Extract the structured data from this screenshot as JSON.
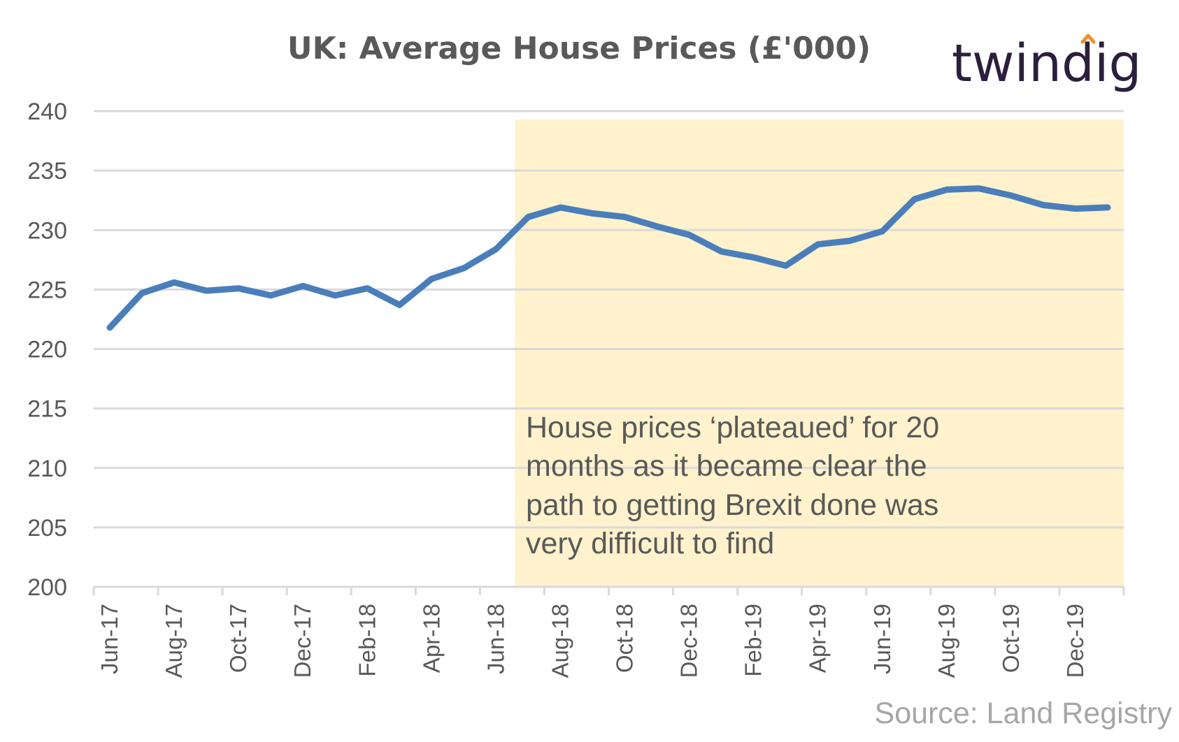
{
  "chart_data": {
    "type": "line",
    "title": "UK: Average House Prices (£'000)",
    "xlabel": "",
    "ylabel": "",
    "ylim": [
      200,
      240
    ],
    "yticks": [
      "200",
      "205",
      "210",
      "215",
      "220",
      "225",
      "230",
      "235",
      "240"
    ],
    "x": [
      "Jun-17",
      "Jul-17",
      "Aug-17",
      "Sep-17",
      "Oct-17",
      "Nov-17",
      "Dec-17",
      "Jan-18",
      "Feb-18",
      "Mar-18",
      "Apr-18",
      "May-18",
      "Jun-18",
      "Jul-18",
      "Aug-18",
      "Sep-18",
      "Oct-18",
      "Nov-18",
      "Dec-18",
      "Jan-19",
      "Feb-19",
      "Mar-19",
      "Apr-19",
      "May-19",
      "Jun-19",
      "Jul-19",
      "Aug-19",
      "Sep-19",
      "Oct-19",
      "Nov-19",
      "Dec-19",
      "Jan-20"
    ],
    "x_tick_labels": [
      "Jun-17",
      "Aug-17",
      "Oct-17",
      "Dec-17",
      "Feb-18",
      "Apr-18",
      "Jun-18",
      "Aug-18",
      "Oct-18",
      "Dec-18",
      "Feb-19",
      "Apr-19",
      "Jun-19",
      "Aug-19",
      "Oct-19",
      "Dec-19"
    ],
    "series": [
      {
        "values": [
          221.8,
          224.7,
          225.6,
          224.9,
          225.1,
          224.5,
          225.3,
          224.5,
          225.1,
          223.7,
          225.9,
          226.8,
          228.4,
          231.1,
          231.9,
          231.4,
          231.1,
          230.3,
          229.6,
          228.2,
          227.7,
          227.0,
          228.8,
          229.1,
          229.9,
          232.6,
          233.4,
          233.5,
          232.9,
          232.1,
          231.8,
          231.9
        ],
        "color": "#4a7ebb"
      }
    ],
    "highlight": {
      "from": "Jul-18",
      "to": "Jan-20",
      "color": "#fff2cc"
    },
    "annotation": [
      "House prices ‘plateaued’ for 20",
      "months as it became clear the",
      "path to getting Brexit done was",
      "very difficult to find"
    ],
    "grid": true,
    "legend": "none"
  },
  "logo": "twindig",
  "source": "Source: Land Registry",
  "colors": {
    "line": "#4a7ebb",
    "highlight": "#fff2cc",
    "grid": "#d9d9d9",
    "text": "#595959",
    "source": "#a6a6a6",
    "logo": "#2b1f3d",
    "logo_accent": "#f28c28"
  }
}
